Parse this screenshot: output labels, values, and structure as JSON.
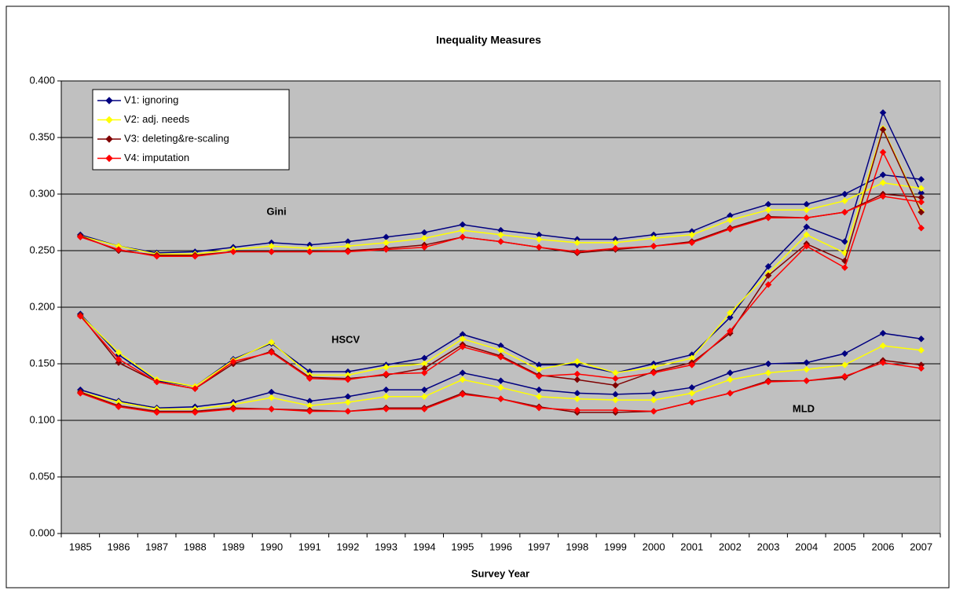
{
  "chart_data": {
    "type": "line",
    "title": "Inequality Measures",
    "x_label": "Survey Year",
    "categories": [
      "1985",
      "1986",
      "1987",
      "1988",
      "1989",
      "1990",
      "1991",
      "1992",
      "1993",
      "1994",
      "1995",
      "1996",
      "1997",
      "1998",
      "1999",
      "2000",
      "2001",
      "2002",
      "2003",
      "2004",
      "2005",
      "2006",
      "2007"
    ],
    "ylim": [
      0,
      0.4
    ],
    "yticks": [
      {
        "value": 0,
        "label": "0.000"
      },
      {
        "value": 0.05,
        "label": "0.050"
      },
      {
        "value": 0.1,
        "label": "0.100"
      },
      {
        "value": 0.15,
        "label": "0.150"
      },
      {
        "value": 0.2,
        "label": "0.200"
      },
      {
        "value": 0.25,
        "label": "0.250"
      },
      {
        "value": 0.3,
        "label": "0.300"
      },
      {
        "value": 0.35,
        "label": "0.350"
      },
      {
        "value": 0.4,
        "label": "0.400"
      }
    ],
    "grid": true,
    "legend": "top-left",
    "background": "#c0c0c0",
    "annotations": [
      "Gini",
      "HSCV",
      "MLD"
    ],
    "series": [
      {
        "name": "V1: ignoring",
        "color": "#000080",
        "lines": [
          [
            0.264,
            0.254,
            0.248,
            0.249,
            0.253,
            0.257,
            0.255,
            0.258,
            0.262,
            0.266,
            0.273,
            0.268,
            0.264,
            0.26,
            0.26,
            0.264,
            0.267,
            0.281,
            0.291,
            0.291,
            0.3,
            0.317,
            0.313
          ],
          [
            0.194,
            0.158,
            0.135,
            0.13,
            0.154,
            0.168,
            0.143,
            0.143,
            0.149,
            0.155,
            0.176,
            0.166,
            0.149,
            0.149,
            0.142,
            0.15,
            0.158,
            0.191,
            0.236,
            0.271,
            0.258,
            0.372,
            0.301
          ],
          [
            0.127,
            0.117,
            0.111,
            0.112,
            0.116,
            0.125,
            0.117,
            0.121,
            0.127,
            0.127,
            0.142,
            0.135,
            0.127,
            0.124,
            0.123,
            0.124,
            0.129,
            0.142,
            0.15,
            0.151,
            0.159,
            0.177,
            0.172
          ]
        ]
      },
      {
        "name": "V2: adj. needs",
        "color": "#ffff00",
        "lines": [
          [
            0.263,
            0.254,
            0.247,
            0.247,
            0.251,
            0.254,
            0.252,
            0.254,
            0.257,
            0.261,
            0.268,
            0.264,
            0.26,
            0.257,
            0.257,
            0.261,
            0.264,
            0.277,
            0.286,
            0.286,
            0.294,
            0.31,
            0.305
          ],
          [
            0.193,
            0.16,
            0.136,
            0.13,
            0.153,
            0.169,
            0.14,
            0.14,
            0.147,
            0.15,
            0.172,
            0.162,
            0.145,
            0.152,
            0.142,
            0.147,
            0.155,
            0.195,
            0.23,
            0.264,
            0.248,
            0.358,
            0.285
          ],
          [
            0.125,
            0.116,
            0.11,
            0.11,
            0.114,
            0.12,
            0.113,
            0.116,
            0.121,
            0.121,
            0.136,
            0.129,
            0.121,
            0.119,
            0.118,
            0.118,
            0.124,
            0.136,
            0.142,
            0.145,
            0.149,
            0.166,
            0.162
          ]
        ]
      },
      {
        "name": "V3: deleting&re-scaling",
        "color": "#800000",
        "lines": [
          [
            0.263,
            0.25,
            0.246,
            0.246,
            0.249,
            0.249,
            0.249,
            0.25,
            0.252,
            0.255,
            0.262,
            0.258,
            0.253,
            0.248,
            0.251,
            0.254,
            0.258,
            0.27,
            0.28,
            0.279,
            0.284,
            0.3,
            0.297
          ],
          [
            0.193,
            0.151,
            0.134,
            0.128,
            0.15,
            0.161,
            0.138,
            0.137,
            0.14,
            0.146,
            0.167,
            0.157,
            0.14,
            0.136,
            0.131,
            0.143,
            0.151,
            0.177,
            0.228,
            0.256,
            0.241,
            0.357,
            0.284
          ],
          [
            0.125,
            0.113,
            0.108,
            0.108,
            0.111,
            0.11,
            0.109,
            0.108,
            0.111,
            0.111,
            0.124,
            0.119,
            0.112,
            0.107,
            0.107,
            0.108,
            0.116,
            0.124,
            0.135,
            0.135,
            0.138,
            0.153,
            0.149
          ]
        ]
      },
      {
        "name": "V4: imputation",
        "color": "#ff0000",
        "lines": [
          [
            0.262,
            0.251,
            0.245,
            0.245,
            0.249,
            0.249,
            0.249,
            0.249,
            0.251,
            0.253,
            0.262,
            0.258,
            0.253,
            0.249,
            0.252,
            0.254,
            0.257,
            0.269,
            0.279,
            0.279,
            0.284,
            0.298,
            0.293
          ],
          [
            0.192,
            0.154,
            0.134,
            0.128,
            0.152,
            0.16,
            0.137,
            0.136,
            0.141,
            0.142,
            0.165,
            0.156,
            0.139,
            0.141,
            0.137,
            0.142,
            0.149,
            0.179,
            0.22,
            0.254,
            0.235,
            0.337,
            0.27
          ],
          [
            0.124,
            0.112,
            0.107,
            0.107,
            0.11,
            0.11,
            0.108,
            0.108,
            0.11,
            0.11,
            0.123,
            0.119,
            0.111,
            0.109,
            0.109,
            0.108,
            0.116,
            0.124,
            0.134,
            0.135,
            0.139,
            0.151,
            0.146
          ]
        ]
      }
    ]
  }
}
